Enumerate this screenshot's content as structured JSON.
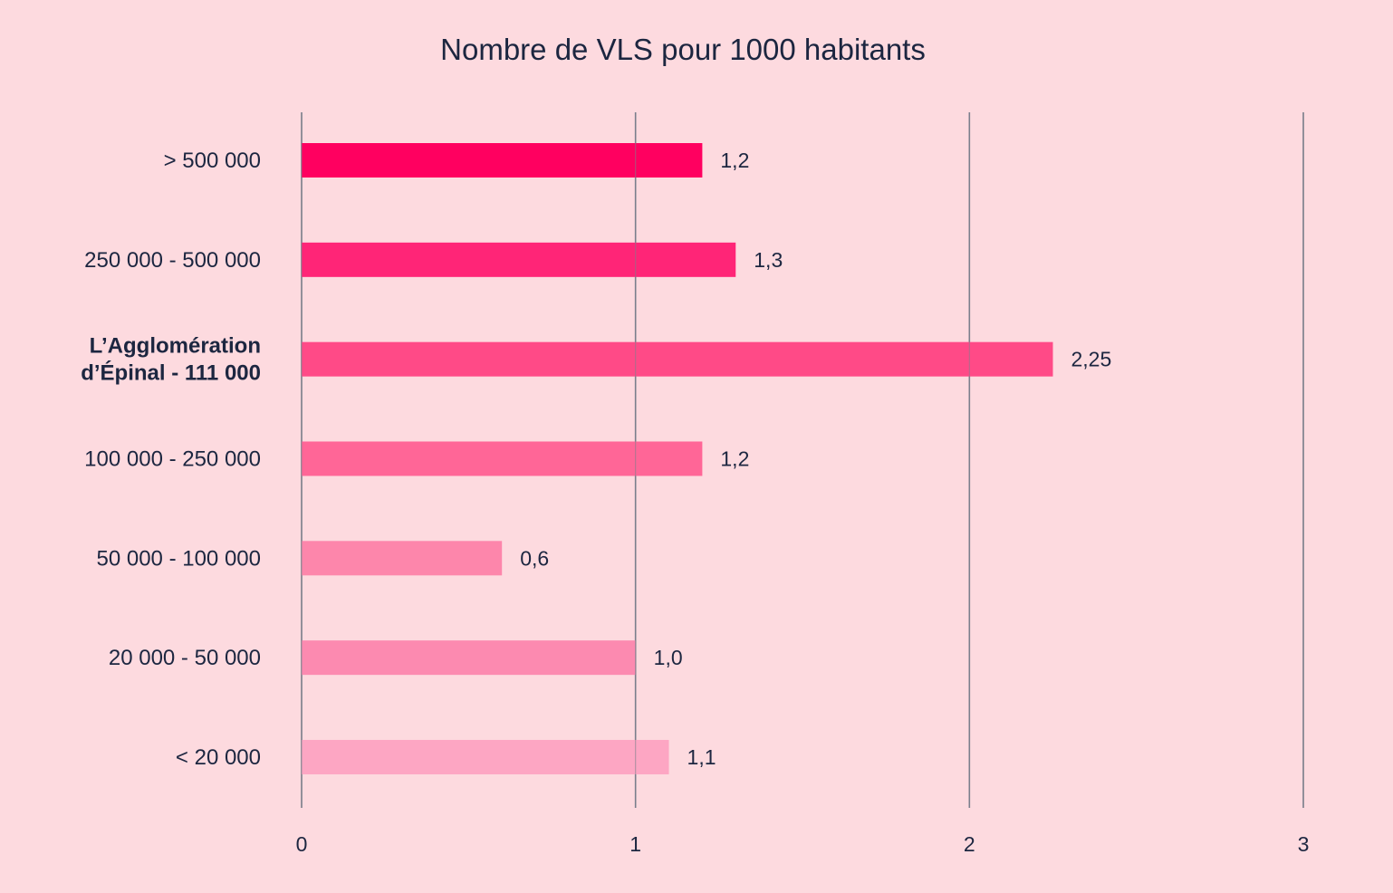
{
  "chart_data": {
    "type": "bar",
    "orientation": "horizontal",
    "title": "Nombre de VLS pour 1000 habitants",
    "xlabel": "",
    "ylabel": "",
    "xlim": [
      0,
      3
    ],
    "x_ticks": [
      {
        "value": 0,
        "label": "0"
      },
      {
        "value": 1,
        "label": "1"
      },
      {
        "value": 2,
        "label": "2"
      },
      {
        "value": 3,
        "label": "3"
      }
    ],
    "grid": "vertical",
    "legend": "none",
    "categories": [
      "> 500 000",
      "250 000 - 500 000",
      "L’Agglomération d’Épinal - 111 000",
      "100 000 - 250 000",
      "50 000 - 100 000",
      "20 000 - 50 000",
      "< 20 000"
    ],
    "category_lines": [
      [
        "> 500 000"
      ],
      [
        "250 000 - 500 000"
      ],
      [
        "L’Agglomération",
        "d’Épinal - 111 000"
      ],
      [
        "100 000 - 250 000"
      ],
      [
        "50 000 - 100 000"
      ],
      [
        "20 000 - 50 000"
      ],
      [
        "< 20 000"
      ]
    ],
    "highlighted_category": "L’Agglomération d’Épinal - 111 000",
    "values": [
      1.2,
      1.3,
      2.25,
      1.2,
      0.6,
      1.0,
      1.1
    ],
    "value_labels": [
      "1,2",
      "1,3",
      "2,25",
      "1,2",
      "0,6",
      "1,0",
      "1,1"
    ],
    "bar_colors": [
      "#ff0060",
      "#ff2577",
      "#ff4a87",
      "#ff6697",
      "#fd86ab",
      "#fc8ab0",
      "#fda6c3"
    ],
    "gridline_color": "#7b7f8c",
    "text_color": "#1c2640",
    "background_color": "#fddadf"
  }
}
